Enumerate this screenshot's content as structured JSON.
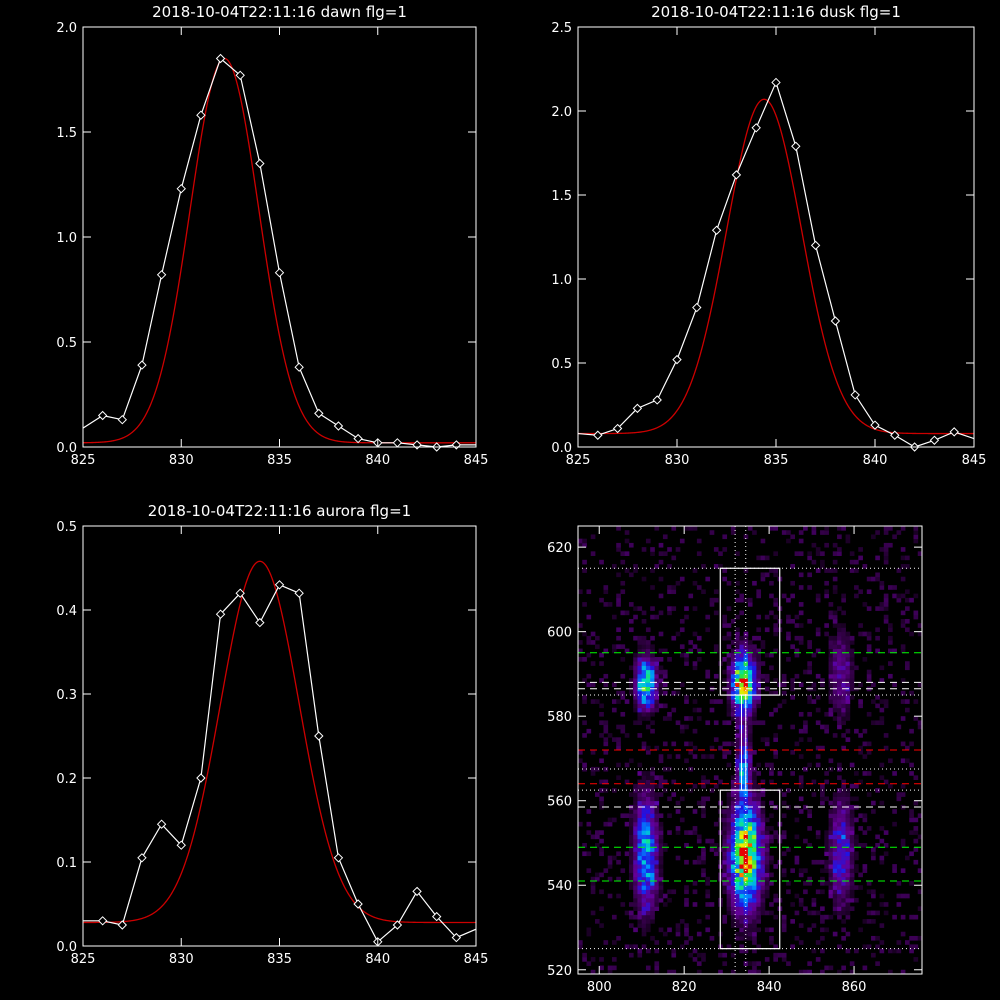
{
  "colors": {
    "background": "#000000",
    "data_line": "#ffffff",
    "fit_line": "#cc0000",
    "box": "#ffffff",
    "green_dash": "#00ff00",
    "red_dash": "#ff0000",
    "white_dash": "#ffffff"
  },
  "chart_data": [
    {
      "type": "line",
      "title": "2018-10-04T22:11:16 dawn flg=1",
      "xlim": [
        825,
        845
      ],
      "ylim": [
        0,
        2.0
      ],
      "x_ticks": [
        825,
        830,
        835,
        840,
        845
      ],
      "y_ticks": [
        0.0,
        0.5,
        1.0,
        1.5,
        2.0
      ],
      "x_tick_labels": [
        "825",
        "830",
        "835",
        "840",
        "845"
      ],
      "y_tick_labels": [
        "0.0",
        "0.5",
        "1.0",
        "1.5",
        "2.0"
      ],
      "series": [
        {
          "kind": "data",
          "marker": "diamond",
          "x": [
            825,
            826,
            827,
            828,
            829,
            830,
            831,
            832,
            833,
            834,
            835,
            836,
            837,
            838,
            839,
            840,
            841,
            842,
            843,
            844,
            845
          ],
          "y": [
            0.09,
            0.15,
            0.13,
            0.39,
            0.82,
            1.23,
            1.58,
            1.85,
            1.77,
            1.35,
            0.83,
            0.38,
            0.16,
            0.1,
            0.04,
            0.02,
            0.02,
            0.01,
            0.0,
            0.01,
            0.01
          ]
        },
        {
          "kind": "fit",
          "model": "gaussian",
          "amplitude": 1.83,
          "center": 832.2,
          "sigma": 1.75,
          "baseline": 0.02
        }
      ]
    },
    {
      "type": "line",
      "title": "2018-10-04T22:11:16 dusk flg=1",
      "xlim": [
        825,
        845
      ],
      "ylim": [
        0,
        2.5
      ],
      "x_ticks": [
        825,
        830,
        835,
        840,
        845
      ],
      "y_ticks": [
        0.0,
        0.5,
        1.0,
        1.5,
        2.0,
        2.5
      ],
      "x_tick_labels": [
        "825",
        "830",
        "835",
        "840",
        "845"
      ],
      "y_tick_labels": [
        "0.0",
        "0.5",
        "1.0",
        "1.5",
        "2.0",
        "2.5"
      ],
      "series": [
        {
          "kind": "data",
          "marker": "diamond",
          "x": [
            825,
            826,
            827,
            828,
            829,
            830,
            831,
            832,
            833,
            834,
            835,
            836,
            837,
            838,
            839,
            840,
            841,
            842,
            843,
            844,
            845
          ],
          "y": [
            0.08,
            0.07,
            0.11,
            0.23,
            0.28,
            0.52,
            0.83,
            1.29,
            1.62,
            1.9,
            2.17,
            1.79,
            1.2,
            0.75,
            0.31,
            0.13,
            0.07,
            0.0,
            0.04,
            0.09,
            0.05
          ]
        },
        {
          "kind": "fit",
          "model": "gaussian",
          "amplitude": 1.99,
          "center": 834.4,
          "sigma": 1.9,
          "baseline": 0.08
        }
      ]
    },
    {
      "type": "line",
      "title": "2018-10-04T22:11:16 aurora flg=1",
      "xlim": [
        825,
        845
      ],
      "ylim": [
        0,
        0.5
      ],
      "x_ticks": [
        825,
        830,
        835,
        840,
        845
      ],
      "y_ticks": [
        0.0,
        0.1,
        0.2,
        0.3,
        0.4,
        0.5
      ],
      "x_tick_labels": [
        "825",
        "830",
        "835",
        "840",
        "845"
      ],
      "y_tick_labels": [
        "0.0",
        "0.1",
        "0.2",
        "0.3",
        "0.4",
        "0.5"
      ],
      "series": [
        {
          "kind": "data",
          "marker": "diamond",
          "x": [
            825,
            826,
            827,
            828,
            829,
            830,
            831,
            832,
            833,
            834,
            835,
            836,
            837,
            838,
            839,
            840,
            841,
            842,
            843,
            844,
            845
          ],
          "y": [
            0.03,
            0.03,
            0.025,
            0.105,
            0.145,
            0.12,
            0.2,
            0.395,
            0.42,
            0.385,
            0.43,
            0.42,
            0.25,
            0.105,
            0.05,
            0.005,
            0.025,
            0.065,
            0.035,
            0.01,
            0.02
          ]
        },
        {
          "kind": "fit",
          "model": "gaussian",
          "amplitude": 0.43,
          "center": 834.0,
          "sigma": 2.0,
          "baseline": 0.028
        }
      ]
    },
    {
      "type": "heatmap",
      "title": "",
      "xlim": [
        795,
        876
      ],
      "ylim": [
        519,
        625
      ],
      "x_ticks": [
        800,
        820,
        840,
        860
      ],
      "y_ticks": [
        520,
        540,
        560,
        580,
        600,
        620
      ],
      "x_tick_labels": [
        "800",
        "820",
        "840",
        "860"
      ],
      "y_tick_labels": [
        "520",
        "540",
        "560",
        "580",
        "600",
        "620"
      ],
      "blobs": [
        {
          "x": 811,
          "y": 588,
          "sx": 1.6,
          "sy": 4,
          "amp": 0.68
        },
        {
          "x": 811,
          "y": 548,
          "sx": 1.8,
          "sy": 9,
          "amp": 0.55
        },
        {
          "x": 834,
          "y": 588,
          "sx": 1.8,
          "sy": 4.5,
          "amp": 1.0
        },
        {
          "x": 834.5,
          "y": 547,
          "sx": 2.4,
          "sy": 8,
          "amp": 0.95
        },
        {
          "x": 834,
          "y": 568,
          "sx": 1.0,
          "sy": 6,
          "amp": 0.45
        },
        {
          "x": 857,
          "y": 548,
          "sx": 1.8,
          "sy": 8,
          "amp": 0.35
        },
        {
          "x": 857,
          "y": 590,
          "sx": 1.8,
          "sy": 7,
          "amp": 0.22
        }
      ],
      "boxes": [
        {
          "x0": 828.5,
          "x1": 842.5,
          "y0": 585,
          "y1": 615
        },
        {
          "x0": 828.5,
          "x1": 842.5,
          "y0": 525,
          "y1": 562.5
        }
      ],
      "connector": {
        "x0": 833.5,
        "x1": 834.5,
        "y0": 562.5,
        "y1": 585
      },
      "hlines_white_dotted": [
        615,
        585,
        567.5,
        562.5,
        525
      ],
      "vlines_white_dotted": [
        832,
        834.5
      ],
      "hlines_green_dashed": [
        595,
        549,
        541
      ],
      "hlines_red_dashed": [
        572,
        564
      ],
      "hlines_white_dashed": [
        588,
        586.5,
        558.5
      ]
    }
  ]
}
